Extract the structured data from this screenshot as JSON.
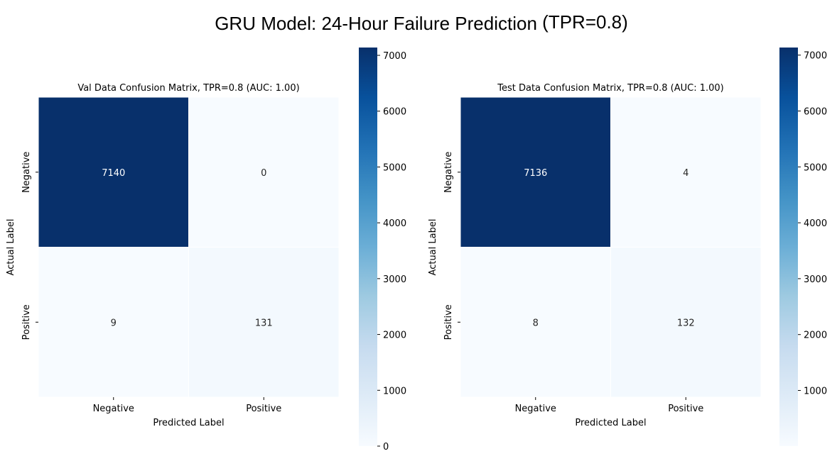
{
  "figure": {
    "title_main": "GRU Model: 24-Hour Failure Prediction",
    "title_suffix": "(TPR=0.8)"
  },
  "colors": {
    "cmap": [
      "#f7fbff",
      "#deebf7",
      "#c6dbef",
      "#9ecae1",
      "#6baed6",
      "#4292c6",
      "#2171b5",
      "#08519c",
      "#08306b"
    ],
    "text_dark": "#262626",
    "text_light": "#ffffff"
  },
  "chart_data": [
    {
      "type": "heatmap",
      "title": "Val Data Confusion Matrix, TPR=0.8 (AUC: 1.00)",
      "xlabel": "Predicted Label",
      "ylabel": "Actual Label",
      "x_categories": [
        "Negative",
        "Positive"
      ],
      "y_categories": [
        "Negative",
        "Positive"
      ],
      "values": [
        [
          7140,
          0
        ],
        [
          9,
          131
        ]
      ],
      "colorbar": {
        "min": 0,
        "max": 7140,
        "ticks": [
          0,
          1000,
          2000,
          3000,
          4000,
          5000,
          6000,
          7000
        ],
        "cmap": "Blues"
      }
    },
    {
      "type": "heatmap",
      "title": "Test Data Confusion Matrix, TPR=0.8 (AUC: 1.00)",
      "xlabel": "Predicted Label",
      "ylabel": "Actual Label",
      "x_categories": [
        "Negative",
        "Positive"
      ],
      "y_categories": [
        "Negative",
        "Positive"
      ],
      "values": [
        [
          7136,
          4
        ],
        [
          8,
          132
        ]
      ],
      "colorbar": {
        "min": 4,
        "max": 7136,
        "ticks": [
          1000,
          2000,
          3000,
          4000,
          5000,
          6000,
          7000
        ],
        "cmap": "Blues"
      }
    }
  ]
}
